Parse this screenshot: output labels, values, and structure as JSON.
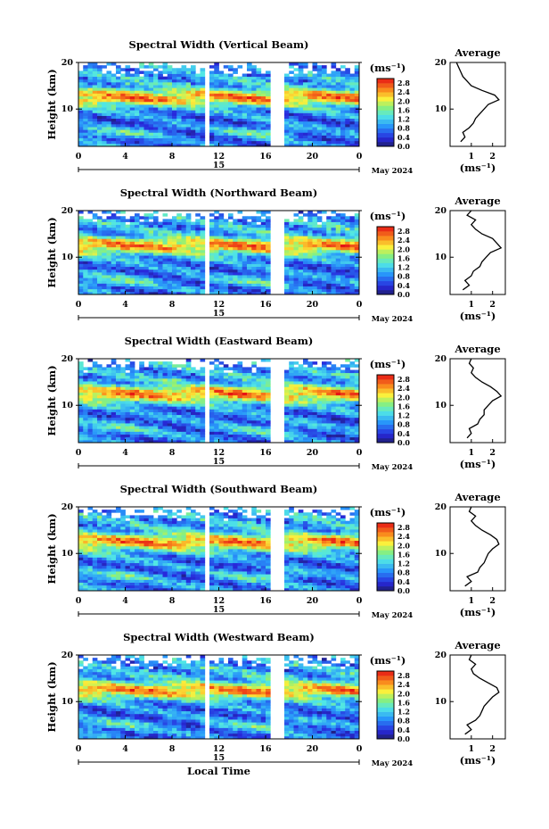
{
  "chart_data": [
    {
      "type": "heatmap",
      "title": "Spectral Width (Vertical Beam)",
      "ylabel": "Height (km)",
      "y_ticks": [
        "20",
        "10"
      ],
      "ylim": [
        2,
        20
      ],
      "x_ticks": [
        "0",
        "4",
        "8",
        "12",
        "16",
        "20",
        "0"
      ],
      "xlim": [
        0,
        24
      ],
      "date_marker": "15",
      "date_label": "May 2024",
      "colorbar": {
        "unit": "(ms⁻¹)",
        "ticks": [
          "2.8",
          "2.4",
          "2.0",
          "1.6",
          "1.2",
          "0.8",
          "0.4",
          "0.0"
        ],
        "range": [
          0,
          3
        ]
      },
      "average": {
        "title": "Average",
        "xlabel": "(ms⁻¹)",
        "x_ticks": [
          "1",
          "2"
        ],
        "y_ticks": [
          "20",
          "10"
        ],
        "xlim": [
          0,
          2.6
        ],
        "profile": [
          [
            0.5,
            3
          ],
          [
            0.7,
            4
          ],
          [
            0.6,
            5
          ],
          [
            0.9,
            6
          ],
          [
            1.1,
            7
          ],
          [
            1.2,
            8
          ],
          [
            1.4,
            9
          ],
          [
            1.6,
            10
          ],
          [
            1.8,
            11
          ],
          [
            2.3,
            12
          ],
          [
            2.1,
            13
          ],
          [
            1.5,
            14
          ],
          [
            1.0,
            15
          ],
          [
            0.8,
            16
          ],
          [
            0.6,
            17
          ],
          [
            0.5,
            18
          ],
          [
            0.4,
            19
          ],
          [
            0.3,
            20
          ]
        ]
      },
      "gaps": [
        [
          10.9,
          11.2
        ],
        [
          16.6,
          17.6
        ]
      ]
    },
    {
      "type": "heatmap",
      "title": "Spectral Width (Northward Beam)",
      "ylabel": "Height (km)",
      "y_ticks": [
        "20",
        "10"
      ],
      "ylim": [
        2,
        20
      ],
      "x_ticks": [
        "0",
        "4",
        "8",
        "12",
        "16",
        "20",
        "0"
      ],
      "xlim": [
        0,
        24
      ],
      "date_marker": "15",
      "date_label": "May 2024",
      "colorbar": {
        "unit": "(ms⁻¹)",
        "ticks": [
          "2.8",
          "2.4",
          "2.0",
          "1.6",
          "1.2",
          "0.8",
          "0.4",
          "0.0"
        ],
        "range": [
          0,
          3
        ]
      },
      "average": {
        "title": "Average",
        "xlabel": "(ms⁻¹)",
        "x_ticks": [
          "1",
          "2"
        ],
        "y_ticks": [
          "20",
          "10"
        ],
        "xlim": [
          0,
          2.6
        ],
        "profile": [
          [
            0.6,
            3
          ],
          [
            0.9,
            4
          ],
          [
            0.7,
            5
          ],
          [
            1.0,
            6
          ],
          [
            1.1,
            7
          ],
          [
            1.4,
            8
          ],
          [
            1.5,
            9
          ],
          [
            1.7,
            10
          ],
          [
            1.9,
            11
          ],
          [
            2.4,
            12
          ],
          [
            2.2,
            13
          ],
          [
            2.0,
            14
          ],
          [
            1.5,
            15
          ],
          [
            1.2,
            16
          ],
          [
            1.0,
            17
          ],
          [
            1.2,
            18
          ],
          [
            0.8,
            19
          ],
          [
            1.0,
            20
          ]
        ]
      },
      "gaps": [
        [
          10.9,
          11.2
        ],
        [
          16.6,
          17.6
        ]
      ]
    },
    {
      "type": "heatmap",
      "title": "Spectral Width (Eastward Beam)",
      "ylabel": "Height (km)",
      "y_ticks": [
        "20",
        "10"
      ],
      "ylim": [
        2,
        20
      ],
      "x_ticks": [
        "0",
        "4",
        "8",
        "12",
        "16",
        "20",
        "0"
      ],
      "xlim": [
        0,
        24
      ],
      "date_marker": "15",
      "date_label": "May 2024",
      "colorbar": {
        "unit": "(ms⁻¹)",
        "ticks": [
          "2.8",
          "2.4",
          "2.0",
          "1.6",
          "1.2",
          "0.8",
          "0.4",
          "0.0"
        ],
        "range": [
          0,
          3
        ]
      },
      "average": {
        "title": "Average",
        "xlabel": "(ms⁻¹)",
        "x_ticks": [
          "1",
          "2"
        ],
        "y_ticks": [
          "20",
          "10"
        ],
        "xlim": [
          0,
          2.6
        ],
        "profile": [
          [
            0.8,
            3
          ],
          [
            1.0,
            4
          ],
          [
            0.9,
            5
          ],
          [
            1.3,
            6
          ],
          [
            1.4,
            7
          ],
          [
            1.6,
            8
          ],
          [
            1.6,
            9
          ],
          [
            1.8,
            10
          ],
          [
            2.0,
            11
          ],
          [
            2.4,
            12
          ],
          [
            2.2,
            13
          ],
          [
            1.9,
            14
          ],
          [
            1.5,
            15
          ],
          [
            1.2,
            16
          ],
          [
            1.0,
            17
          ],
          [
            1.1,
            18
          ],
          [
            0.9,
            19
          ],
          [
            1.0,
            20
          ]
        ]
      },
      "gaps": [
        [
          10.9,
          11.2
        ],
        [
          16.6,
          17.6
        ]
      ]
    },
    {
      "type": "heatmap",
      "title": "Spectral Width (Southward Beam)",
      "ylabel": "Height (km)",
      "y_ticks": [
        "20",
        "10"
      ],
      "ylim": [
        2,
        20
      ],
      "x_ticks": [
        "0",
        "4",
        "8",
        "12",
        "16",
        "20",
        "0"
      ],
      "xlim": [
        0,
        24
      ],
      "date_marker": "15",
      "date_label": "May 2024",
      "colorbar": {
        "unit": "(ms⁻¹)",
        "ticks": [
          "2.8",
          "2.4",
          "2.0",
          "1.6",
          "1.2",
          "0.8",
          "0.4",
          "0.0"
        ],
        "range": [
          0,
          3
        ]
      },
      "average": {
        "title": "Average",
        "xlabel": "(ms⁻¹)",
        "x_ticks": [
          "1",
          "2"
        ],
        "y_ticks": [
          "20",
          "10"
        ],
        "xlim": [
          0,
          2.6
        ],
        "profile": [
          [
            0.7,
            3
          ],
          [
            1.0,
            4
          ],
          [
            0.8,
            5
          ],
          [
            1.3,
            6
          ],
          [
            1.4,
            7
          ],
          [
            1.6,
            8
          ],
          [
            1.7,
            9
          ],
          [
            1.8,
            10
          ],
          [
            2.0,
            11
          ],
          [
            2.3,
            12
          ],
          [
            2.2,
            13
          ],
          [
            1.9,
            14
          ],
          [
            1.5,
            15
          ],
          [
            1.2,
            16
          ],
          [
            1.0,
            17
          ],
          [
            1.2,
            18
          ],
          [
            0.9,
            19
          ],
          [
            1.0,
            20
          ]
        ]
      },
      "gaps": [
        [
          10.9,
          11.2
        ],
        [
          16.6,
          17.6
        ]
      ]
    },
    {
      "type": "heatmap",
      "title": "Spectral Width (Westward Beam)",
      "ylabel": "Height (km)",
      "y_ticks": [
        "20",
        "10"
      ],
      "ylim": [
        2,
        20
      ],
      "x_ticks": [
        "0",
        "4",
        "8",
        "12",
        "16",
        "20",
        "0"
      ],
      "xlim": [
        0,
        24
      ],
      "date_marker": "15",
      "date_label": "May 2024",
      "xlabel": "Local Time",
      "colorbar": {
        "unit": "(ms⁻¹)",
        "ticks": [
          "2.8",
          "2.4",
          "2.0",
          "1.6",
          "1.2",
          "0.8",
          "0.4",
          "0.0"
        ],
        "range": [
          0,
          3
        ]
      },
      "average": {
        "title": "Average",
        "xlabel": "(ms⁻¹)",
        "x_ticks": [
          "1",
          "2"
        ],
        "y_ticks": [
          "20",
          "10"
        ],
        "xlim": [
          0,
          2.6
        ],
        "profile": [
          [
            0.7,
            3
          ],
          [
            1.0,
            4
          ],
          [
            0.8,
            5
          ],
          [
            1.2,
            6
          ],
          [
            1.4,
            7
          ],
          [
            1.5,
            8
          ],
          [
            1.6,
            9
          ],
          [
            1.8,
            10
          ],
          [
            2.0,
            11
          ],
          [
            2.3,
            12
          ],
          [
            2.2,
            13
          ],
          [
            1.8,
            14
          ],
          [
            1.4,
            15
          ],
          [
            1.1,
            16
          ],
          [
            1.0,
            17
          ],
          [
            1.2,
            18
          ],
          [
            0.9,
            19
          ],
          [
            1.0,
            20
          ]
        ]
      },
      "gaps": [
        [
          10.9,
          11.2
        ],
        [
          16.6,
          17.6
        ]
      ]
    }
  ]
}
